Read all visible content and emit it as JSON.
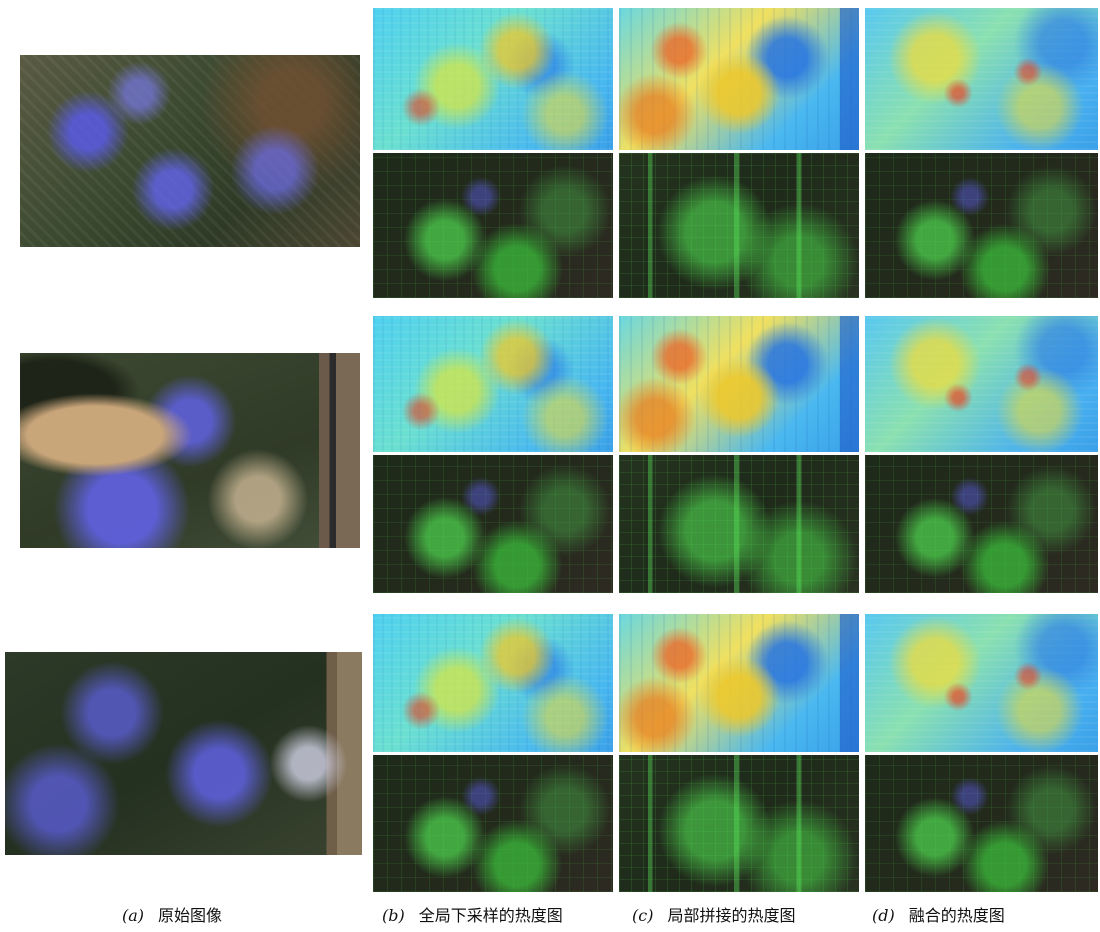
{
  "captions": [
    {
      "label": "(a)",
      "text": "原始图像"
    },
    {
      "label": "(b)",
      "text": "全局下采样的热度图"
    },
    {
      "label": "(c)",
      "text": "局部拼接的热度图"
    },
    {
      "label": "(d)",
      "text": "融合的热度图"
    }
  ]
}
